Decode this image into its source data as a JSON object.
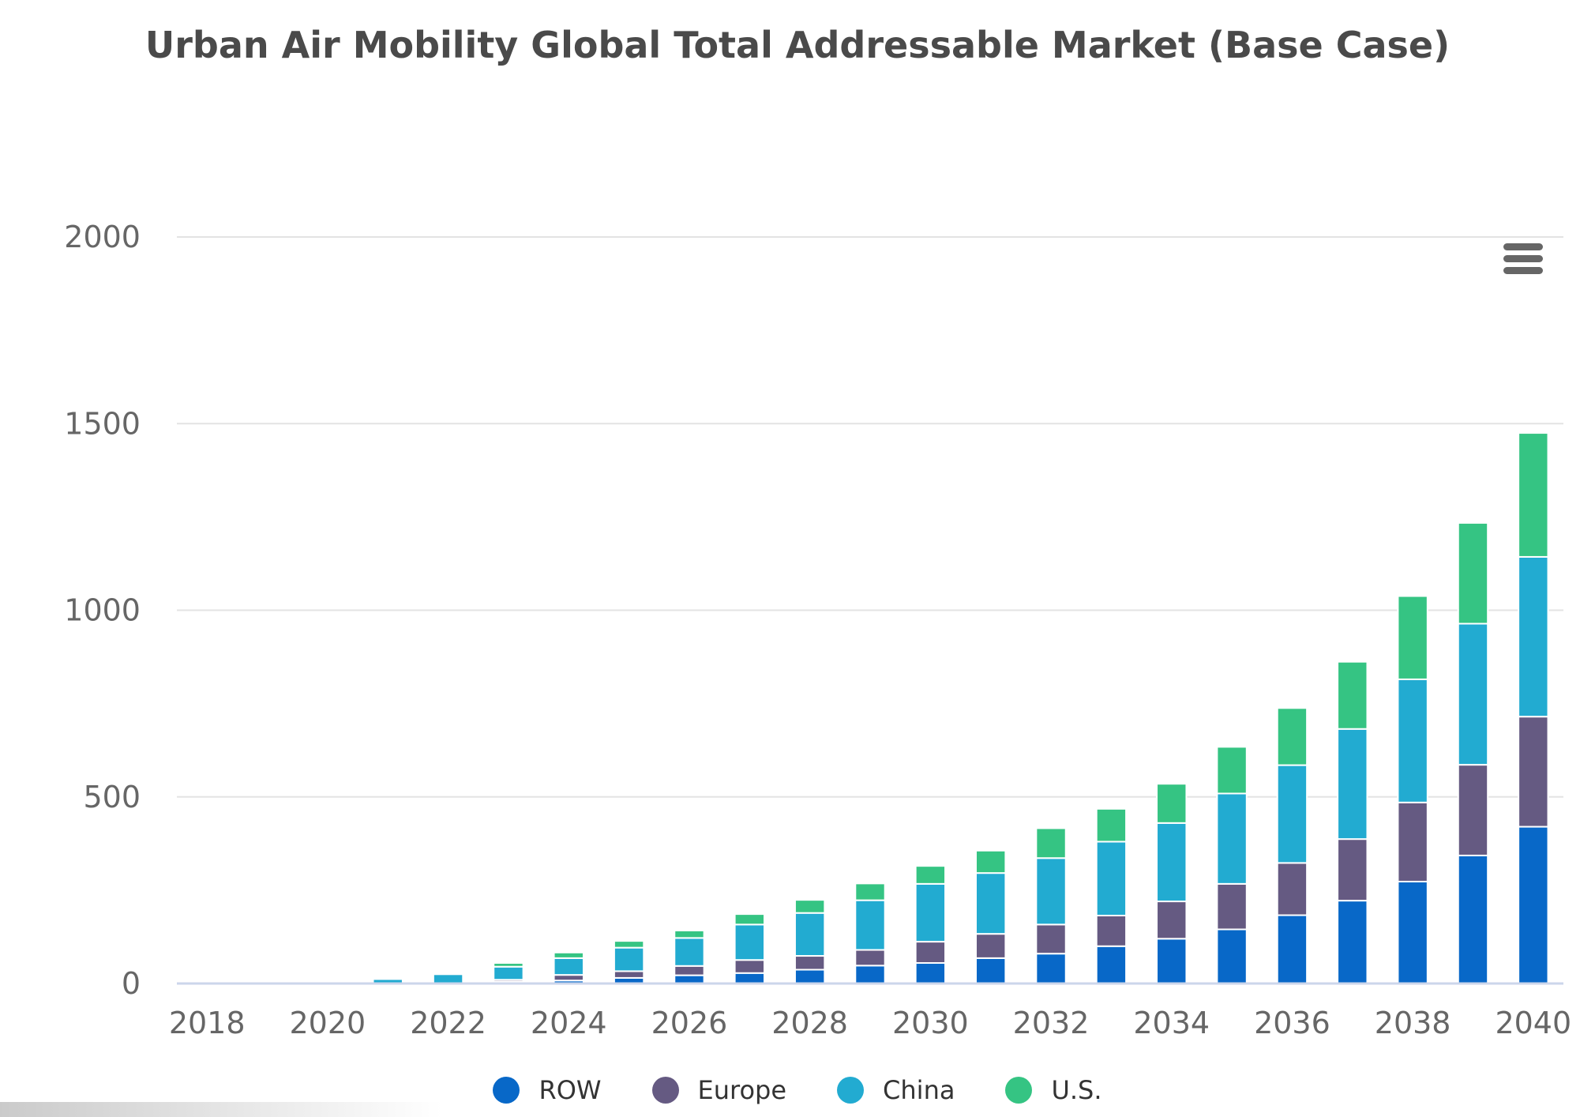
{
  "chart_data": {
    "type": "bar",
    "stacked": true,
    "title": "Urban Air Mobility Global Total Addressable Market (Base Case)",
    "x": [
      2018,
      2019,
      2020,
      2021,
      2022,
      2023,
      2024,
      2025,
      2026,
      2027,
      2028,
      2029,
      2030,
      2031,
      2032,
      2033,
      2034,
      2035,
      2036,
      2037,
      2038,
      2039,
      2040
    ],
    "x_tick_labels": [
      "2018",
      "2020",
      "2022",
      "2024",
      "2026",
      "2028",
      "2030",
      "2032",
      "2034",
      "2036",
      "2038",
      "2040"
    ],
    "y_tick_labels": [
      "0",
      "500",
      "1000",
      "1500",
      "2000"
    ],
    "ylim": [
      0,
      2000
    ],
    "grid": true,
    "legend_position": "bottom",
    "series": [
      {
        "name": "ROW",
        "color": "#0868c8",
        "values": [
          0,
          0,
          0,
          0,
          0,
          5,
          8,
          15,
          22,
          28,
          37,
          48,
          55,
          68,
          80,
          100,
          120,
          145,
          183,
          222,
          273,
          343,
          420
        ]
      },
      {
        "name": "Europe",
        "color": "#655a82",
        "values": [
          0,
          0,
          0,
          0,
          0,
          5,
          15,
          18,
          25,
          35,
          37,
          42,
          57,
          65,
          78,
          82,
          100,
          122,
          140,
          165,
          212,
          243,
          295
        ]
      },
      {
        "name": "China",
        "color": "#22abd1",
        "values": [
          0,
          0,
          0,
          12,
          25,
          35,
          45,
          63,
          75,
          95,
          115,
          133,
          155,
          163,
          178,
          198,
          210,
          242,
          262,
          295,
          330,
          378,
          428
        ]
      },
      {
        "name": "U.S.",
        "color": "#35c483",
        "values": [
          0,
          0,
          0,
          2,
          3,
          10,
          15,
          18,
          20,
          28,
          35,
          45,
          48,
          60,
          80,
          88,
          105,
          125,
          153,
          180,
          223,
          270,
          332
        ]
      }
    ]
  }
}
